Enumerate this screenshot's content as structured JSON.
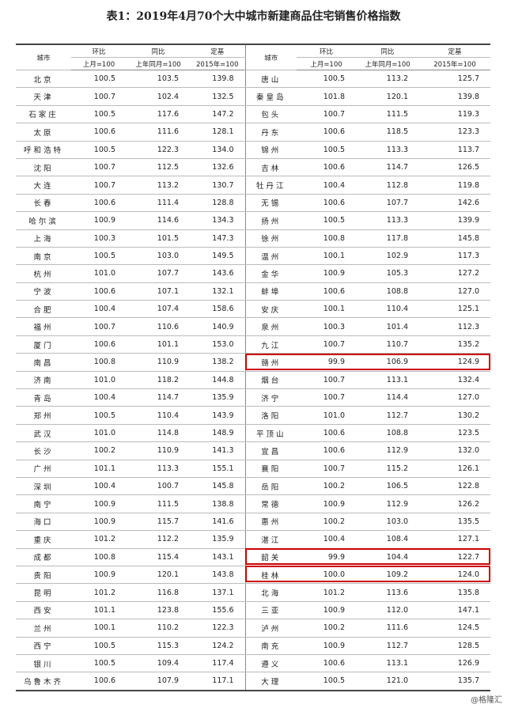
{
  "header": {
    "title": "表1：2019年4月70个大中城市新建商品住宅销售价格指数"
  },
  "table": {
    "header_top": [
      "城市",
      "环比",
      "同比",
      "定基",
      "城市",
      "环比",
      "同比",
      "定基"
    ],
    "header_sub": [
      "上月=100",
      "上年同月=100",
      "2015年=100",
      "上月=100",
      "上年同月=100",
      "2015年=100"
    ],
    "rows": [
      [
        "北京",
        "100.5",
        "103.5",
        "139.8",
        "唐山",
        "100.5",
        "113.2",
        "125.7"
      ],
      [
        "天津",
        "100.7",
        "102.4",
        "132.5",
        "秦皇岛",
        "101.8",
        "120.1",
        "139.8"
      ],
      [
        "石家庄",
        "100.5",
        "117.6",
        "147.2",
        "包头",
        "100.7",
        "111.5",
        "119.3"
      ],
      [
        "太原",
        "100.6",
        "111.6",
        "128.1",
        "丹东",
        "100.6",
        "118.5",
        "123.3"
      ],
      [
        "呼和浩特",
        "100.5",
        "122.3",
        "134.0",
        "锦州",
        "100.5",
        "113.3",
        "113.7"
      ],
      [
        "沈阳",
        "100.7",
        "112.5",
        "132.6",
        "吉林",
        "100.6",
        "114.7",
        "126.5"
      ],
      [
        "大连",
        "100.7",
        "113.2",
        "130.7",
        "牡丹江",
        "100.4",
        "112.8",
        "119.8"
      ],
      [
        "长春",
        "100.6",
        "111.4",
        "128.8",
        "无锡",
        "100.6",
        "107.7",
        "142.6"
      ],
      [
        "哈尔滨",
        "100.9",
        "114.6",
        "134.3",
        "扬州",
        "100.5",
        "113.3",
        "139.9"
      ],
      [
        "上海",
        "100.3",
        "101.5",
        "147.3",
        "徐州",
        "100.8",
        "117.8",
        "145.8"
      ],
      [
        "南京",
        "100.5",
        "103.0",
        "149.5",
        "温州",
        "100.1",
        "102.9",
        "117.3"
      ],
      [
        "杭州",
        "101.0",
        "107.7",
        "143.6",
        "金华",
        "100.9",
        "105.3",
        "127.2"
      ],
      [
        "宁波",
        "100.6",
        "107.1",
        "132.1",
        "蚌埠",
        "100.6",
        "108.8",
        "127.0"
      ],
      [
        "合肥",
        "100.4",
        "107.4",
        "158.6",
        "安庆",
        "100.1",
        "110.4",
        "125.1"
      ],
      [
        "福州",
        "100.7",
        "110.6",
        "140.9",
        "泉州",
        "100.3",
        "101.4",
        "112.3"
      ],
      [
        "厦门",
        "100.6",
        "101.1",
        "153.0",
        "九江",
        "100.7",
        "110.7",
        "135.2"
      ],
      [
        "南昌",
        "100.8",
        "110.9",
        "138.2",
        "赣州",
        "99.9",
        "106.9",
        "124.9"
      ],
      [
        "济南",
        "101.0",
        "118.2",
        "144.8",
        "烟台",
        "100.7",
        "113.1",
        "132.4"
      ],
      [
        "青岛",
        "100.4",
        "114.7",
        "135.9",
        "济宁",
        "100.7",
        "114.4",
        "127.0"
      ],
      [
        "郑州",
        "100.5",
        "110.4",
        "143.9",
        "洛阳",
        "101.0",
        "112.7",
        "130.2"
      ],
      [
        "武汉",
        "101.0",
        "114.8",
        "148.9",
        "平顶山",
        "100.6",
        "108.8",
        "123.5"
      ],
      [
        "长沙",
        "100.2",
        "110.9",
        "141.3",
        "宜昌",
        "100.6",
        "112.9",
        "132.0"
      ],
      [
        "广州",
        "101.1",
        "113.3",
        "155.1",
        "襄阳",
        "100.7",
        "115.2",
        "126.1"
      ],
      [
        "深圳",
        "100.4",
        "100.7",
        "145.8",
        "岳阳",
        "100.2",
        "106.5",
        "122.8"
      ],
      [
        "南宁",
        "100.9",
        "111.5",
        "138.8",
        "常德",
        "100.9",
        "112.9",
        "126.2"
      ],
      [
        "海口",
        "100.9",
        "115.7",
        "141.6",
        "惠州",
        "100.2",
        "103.0",
        "135.5"
      ],
      [
        "重庆",
        "101.2",
        "112.2",
        "135.9",
        "湛江",
        "100.4",
        "108.4",
        "127.1"
      ],
      [
        "成都",
        "100.8",
        "115.4",
        "143.1",
        "韶关",
        "99.9",
        "104.4",
        "122.7"
      ],
      [
        "贵阳",
        "100.9",
        "120.1",
        "143.8",
        "桂林",
        "100.0",
        "109.2",
        "124.0"
      ],
      [
        "昆明",
        "101.2",
        "116.8",
        "137.1",
        "北海",
        "101.2",
        "113.6",
        "135.8"
      ],
      [
        "西安",
        "101.1",
        "123.8",
        "155.6",
        "三亚",
        "100.9",
        "112.0",
        "147.1"
      ],
      [
        "兰州",
        "100.1",
        "110.2",
        "122.3",
        "泸州",
        "100.2",
        "111.6",
        "124.5"
      ],
      [
        "西宁",
        "100.5",
        "115.3",
        "124.2",
        "南充",
        "100.9",
        "112.7",
        "128.5"
      ],
      [
        "银川",
        "100.5",
        "109.4",
        "117.4",
        "遵义",
        "100.6",
        "113.1",
        "126.9"
      ],
      [
        "乌鲁木齐",
        "100.6",
        "107.9",
        "117.1",
        "大理",
        "100.5",
        "121.0",
        "135.7"
      ]
    ]
  },
  "footer": {
    "watermark": "@格隆汇"
  }
}
